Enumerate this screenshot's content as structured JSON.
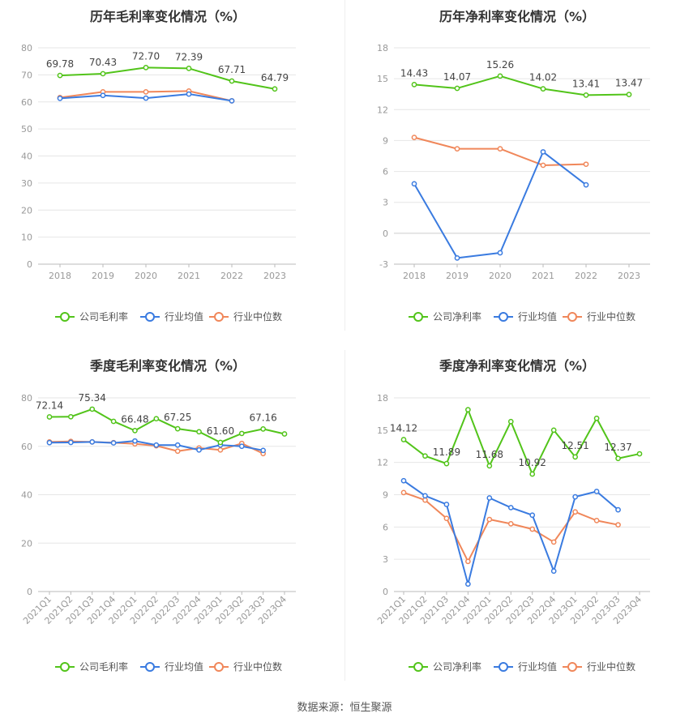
{
  "colors": {
    "company": "#52c41a",
    "industry_avg": "#3a7be0",
    "industry_median": "#f0875a",
    "grid": "#e6e6e6",
    "axis_text": "#999999",
    "title_text": "#333333"
  },
  "source_text": "数据来源：恒生聚源",
  "chart_data": [
    {
      "type": "line",
      "title": "历年毛利率变化情况（%）",
      "categories": [
        "2018",
        "2019",
        "2020",
        "2021",
        "2022",
        "2023"
      ],
      "ylim": [
        0,
        80
      ],
      "yticks": [
        0,
        10,
        20,
        30,
        40,
        50,
        60,
        70,
        80
      ],
      "xlabel_rotate": false,
      "series": [
        {
          "name": "公司毛利率",
          "key": "company",
          "values": [
            69.78,
            70.43,
            72.7,
            72.39,
            67.71,
            64.79
          ],
          "labels": [
            "69.78",
            "70.43",
            "72.70",
            "72.39",
            "67.71",
            "64.79"
          ]
        },
        {
          "name": "行业均值",
          "key": "industry_avg",
          "values": [
            61.3,
            62.4,
            61.4,
            62.9,
            60.4,
            null
          ],
          "labels": []
        },
        {
          "name": "行业中位数",
          "key": "industry_median",
          "values": [
            61.6,
            63.7,
            63.7,
            64.0,
            60.4,
            null
          ],
          "labels": []
        }
      ],
      "legend": "bottom"
    },
    {
      "type": "line",
      "title": "历年净利率变化情况（%）",
      "categories": [
        "2018",
        "2019",
        "2020",
        "2021",
        "2022",
        "2023"
      ],
      "ylim": [
        -3,
        18
      ],
      "yticks": [
        -3,
        0,
        3,
        6,
        9,
        12,
        15,
        18
      ],
      "xlabel_rotate": false,
      "series": [
        {
          "name": "公司净利率",
          "key": "company",
          "values": [
            14.43,
            14.07,
            15.26,
            14.02,
            13.41,
            13.47
          ],
          "labels": [
            "14.43",
            "14.07",
            "15.26",
            "14.02",
            "13.41",
            "13.47"
          ]
        },
        {
          "name": "行业均值",
          "key": "industry_avg",
          "values": [
            4.8,
            -2.4,
            -1.9,
            7.9,
            4.7,
            null
          ],
          "labels": []
        },
        {
          "name": "行业中位数",
          "key": "industry_median",
          "values": [
            9.3,
            8.2,
            8.2,
            6.6,
            6.7,
            null
          ],
          "labels": []
        }
      ],
      "legend": "bottom"
    },
    {
      "type": "line",
      "title": "季度毛利率变化情况（%）",
      "categories": [
        "2021Q1",
        "2021Q2",
        "2021Q3",
        "2021Q4",
        "2022Q1",
        "2022Q2",
        "2022Q3",
        "2022Q4",
        "2023Q1",
        "2023Q2",
        "2023Q3",
        "2023Q4"
      ],
      "ylim": [
        0,
        80
      ],
      "yticks": [
        0,
        20,
        40,
        60,
        80
      ],
      "xlabel_rotate": true,
      "series": [
        {
          "name": "公司毛利率",
          "key": "company",
          "values": [
            72.14,
            72.2,
            75.34,
            70.3,
            66.48,
            71.4,
            67.25,
            66.0,
            61.6,
            65.3,
            67.16,
            65.1
          ],
          "labels": [
            "72.14",
            "",
            "75.34",
            "",
            "66.48",
            "",
            "67.25",
            "",
            "61.60",
            "",
            "67.16",
            ""
          ]
        },
        {
          "name": "行业均值",
          "key": "industry_avg",
          "values": [
            61.5,
            61.6,
            61.8,
            61.4,
            62.2,
            60.5,
            60.5,
            58.5,
            60.5,
            60.0,
            58.3,
            null
          ],
          "labels": []
        },
        {
          "name": "行业中位数",
          "key": "industry_median",
          "values": [
            61.8,
            62.0,
            61.8,
            61.5,
            61.0,
            60.2,
            58.0,
            59.3,
            58.5,
            61.2,
            57.0,
            null
          ],
          "labels": []
        }
      ],
      "legend": "bottom"
    },
    {
      "type": "line",
      "title": "季度净利率变化情况（%）",
      "categories": [
        "2021Q1",
        "2021Q2",
        "2021Q3",
        "2021Q4",
        "2022Q1",
        "2022Q2",
        "2022Q3",
        "2022Q4",
        "2023Q1",
        "2023Q2",
        "2023Q3",
        "2023Q4"
      ],
      "ylim": [
        0,
        18
      ],
      "yticks": [
        0,
        3,
        6,
        9,
        12,
        15,
        18
      ],
      "xlabel_rotate": true,
      "series": [
        {
          "name": "公司净利率",
          "key": "company",
          "values": [
            14.12,
            12.6,
            11.89,
            16.9,
            11.68,
            15.8,
            10.92,
            15.0,
            12.51,
            16.1,
            12.37,
            12.8
          ],
          "labels": [
            "14.12",
            "",
            "11.89",
            "",
            "11.68",
            "",
            "10.92",
            "",
            "12.51",
            "",
            "12.37",
            ""
          ]
        },
        {
          "name": "行业均值",
          "key": "industry_avg",
          "values": [
            10.3,
            8.9,
            8.1,
            0.7,
            8.7,
            7.8,
            7.1,
            1.9,
            8.8,
            9.3,
            7.6,
            null
          ],
          "labels": []
        },
        {
          "name": "行业中位数",
          "key": "industry_median",
          "values": [
            9.2,
            8.5,
            6.8,
            2.8,
            6.7,
            6.3,
            5.8,
            4.6,
            7.4,
            6.6,
            6.2,
            null
          ],
          "labels": []
        }
      ],
      "legend": "bottom"
    }
  ]
}
